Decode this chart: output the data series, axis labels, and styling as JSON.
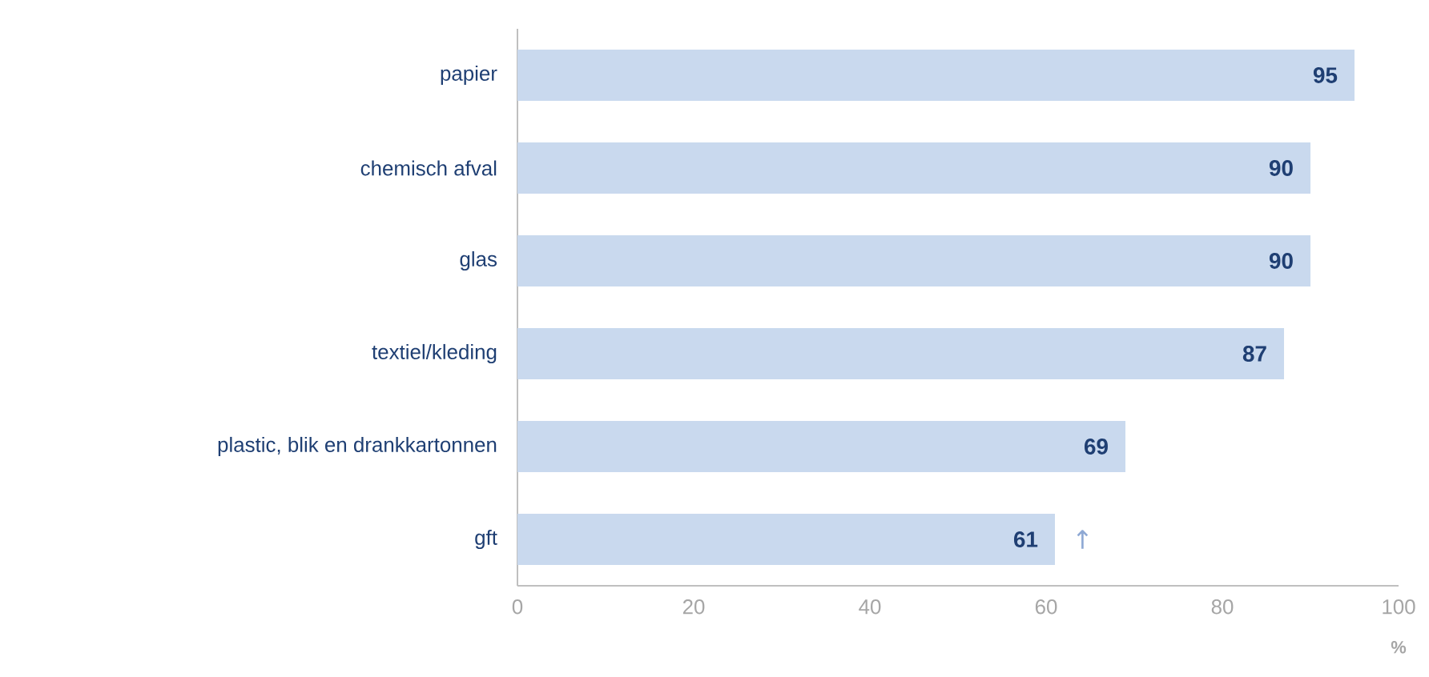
{
  "chart_data": {
    "type": "bar",
    "orientation": "horizontal",
    "categories": [
      "papier",
      "chemisch afval",
      "glas",
      "textiel/kleding",
      "plastic, blik en drankkartonnen",
      "gft"
    ],
    "values": [
      95,
      90,
      90,
      87,
      69,
      61
    ],
    "color": "#c9d9ee",
    "xlim": [
      0,
      100
    ],
    "xticks": [
      0,
      20,
      40,
      60,
      80,
      100
    ],
    "xlabel": "%",
    "data_labels": true,
    "annotations": [
      "↑"
    ]
  }
}
